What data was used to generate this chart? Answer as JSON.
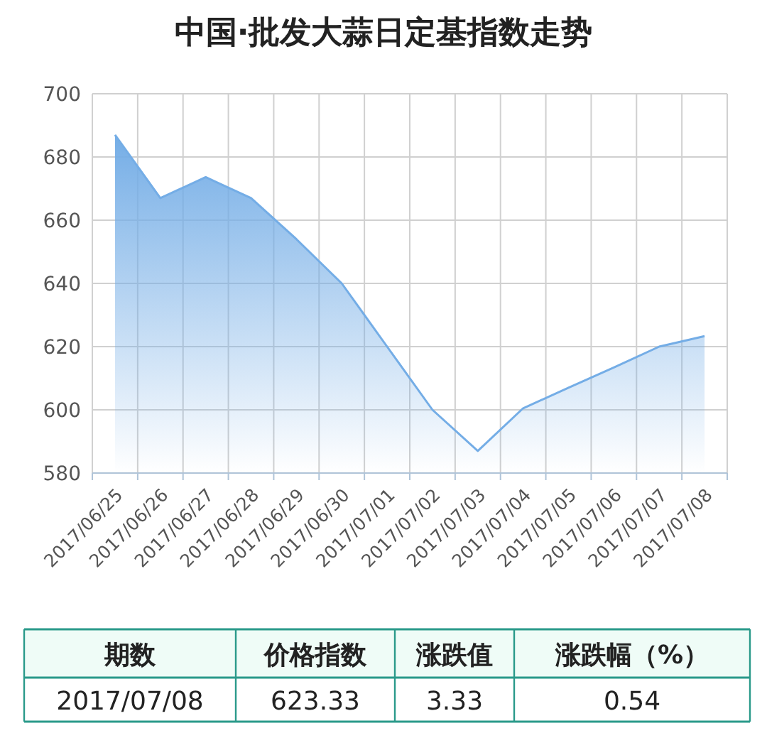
{
  "chart_data": {
    "type": "area",
    "title": "中国·批发大蒜日定基指数走势",
    "categories": [
      "2017/06/25",
      "2017/06/26",
      "2017/06/27",
      "2017/06/28",
      "2017/06/29",
      "2017/06/30",
      "2017/07/01",
      "2017/07/02",
      "2017/07/03",
      "2017/07/04",
      "2017/07/05",
      "2017/07/06",
      "2017/07/07",
      "2017/07/08"
    ],
    "values": [
      687,
      667,
      673.6,
      667,
      654,
      640,
      620,
      600,
      587,
      600.5,
      607,
      613.4,
      620,
      623.33
    ],
    "color": "#74ade6",
    "ylim": [
      580,
      700
    ],
    "yticks": [
      580,
      600,
      620,
      640,
      660,
      680,
      700
    ],
    "grid": true,
    "annotations": [
      "期数",
      "价格指数",
      "涨跌值",
      "涨跌幅（%）",
      "2017/07/08",
      "623.33",
      "3.33",
      "0.54"
    ]
  }
}
